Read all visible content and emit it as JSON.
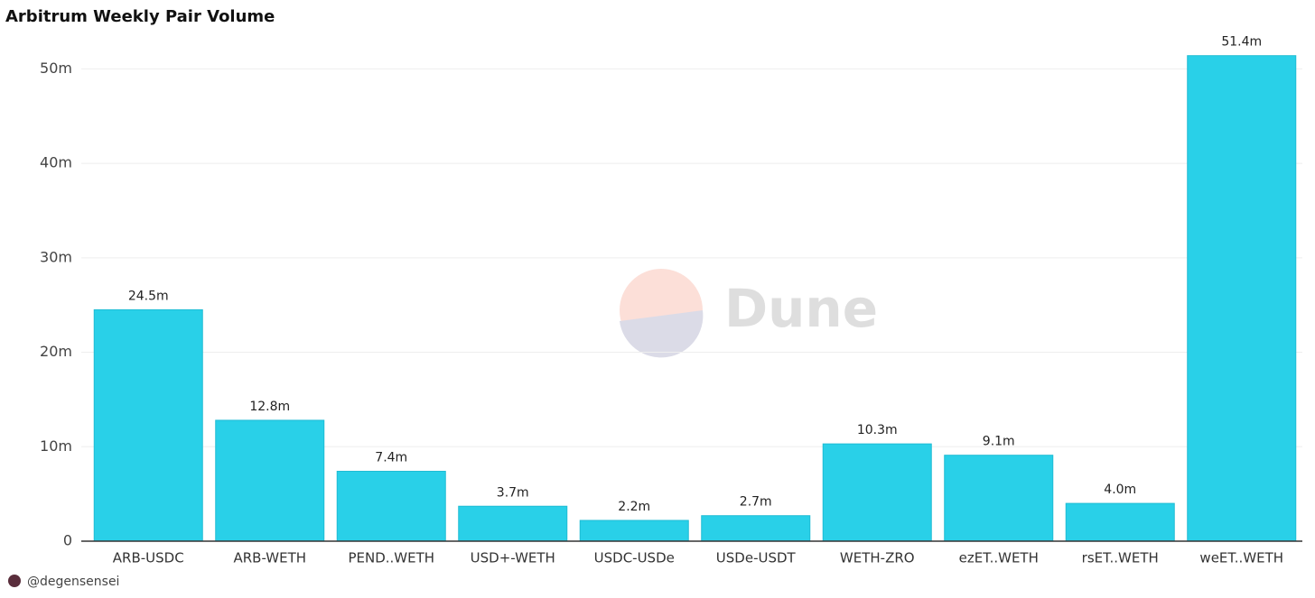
{
  "chart_data": {
    "type": "bar",
    "title": "Arbitrum Weekly Pair Volume",
    "categories": [
      "ARB-USDC",
      "ARB-WETH",
      "PEND..WETH",
      "USD+-WETH",
      "USDC-USDe",
      "USDe-USDT",
      "WETH-ZRO",
      "ezET..WETH",
      "rsET..WETH",
      "weET..WETH"
    ],
    "values": [
      24.5,
      12.8,
      7.4,
      3.7,
      2.2,
      2.7,
      10.3,
      9.1,
      4.0,
      51.4
    ],
    "value_labels": [
      "24.5m",
      "12.8m",
      "7.4m",
      "3.7m",
      "2.2m",
      "2.7m",
      "10.3m",
      "9.1m",
      "4.0m",
      "51.4m"
    ],
    "color": "#29d0e8",
    "ylim": [
      0,
      55
    ],
    "yticks": [
      0,
      {
        "value": 10,
        "label": "10m"
      },
      {
        "value": 20,
        "label": "20m"
      },
      {
        "value": 30,
        "label": "30m"
      },
      {
        "value": 40,
        "label": "40m"
      },
      {
        "value": 50,
        "label": "50m"
      }
    ],
    "grid": true
  },
  "watermark": "Dune",
  "footer": "@degensensei"
}
